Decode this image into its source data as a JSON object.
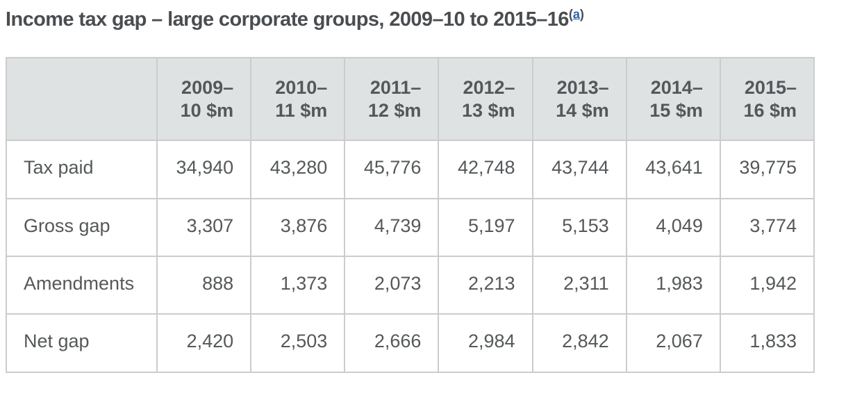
{
  "title": {
    "text": "Income tax gap – large corporate groups, 2009–10 to 2015–16",
    "footnote": {
      "prefix": "(",
      "label": "a",
      "suffix": ")"
    }
  },
  "table": {
    "corner_label": "",
    "columns": [
      {
        "line1": "2009–",
        "line2": "10 $m"
      },
      {
        "line1": "2010–",
        "line2": "11 $m"
      },
      {
        "line1": "2011–",
        "line2": "12 $m"
      },
      {
        "line1": "2012–",
        "line2": "13 $m"
      },
      {
        "line1": "2013–",
        "line2": "14 $m"
      },
      {
        "line1": "2014–",
        "line2": "15 $m"
      },
      {
        "line1": "2015–",
        "line2": "16 $m"
      }
    ],
    "rows": [
      {
        "label": "Tax paid",
        "values": [
          "34,940",
          "43,280",
          "45,776",
          "42,748",
          "43,744",
          "43,641",
          "39,775"
        ]
      },
      {
        "label": "Gross gap",
        "values": [
          "3,307",
          "3,876",
          "4,739",
          "5,197",
          "5,153",
          "4,049",
          "3,774"
        ]
      },
      {
        "label": "Amendments",
        "values": [
          "888",
          "1,373",
          "2,073",
          "2,213",
          "2,311",
          "1,983",
          "1,942"
        ]
      },
      {
        "label": "Net gap",
        "values": [
          "2,420",
          "2,503",
          "2,666",
          "2,984",
          "2,842",
          "2,067",
          "1,833"
        ]
      }
    ]
  },
  "colors": {
    "header_bg": "#dfe2e2",
    "border": "#cccccc",
    "body_text": "#55585a",
    "title_text": "#4a4d50",
    "link": "#2b5fb3"
  },
  "chart_data": {
    "type": "table",
    "title": "Income tax gap – large corporate groups, 2009–10 to 2015–16",
    "unit": "$m",
    "categories": [
      "2009–10",
      "2010–11",
      "2011–12",
      "2012–13",
      "2013–14",
      "2014–15",
      "2015–16"
    ],
    "series": [
      {
        "name": "Tax paid",
        "values": [
          34940,
          43280,
          45776,
          42748,
          43744,
          43641,
          39775
        ]
      },
      {
        "name": "Gross gap",
        "values": [
          3307,
          3876,
          4739,
          5197,
          5153,
          4049,
          3774
        ]
      },
      {
        "name": "Amendments",
        "values": [
          888,
          1373,
          2073,
          2213,
          2311,
          1983,
          1942
        ]
      },
      {
        "name": "Net gap",
        "values": [
          2420,
          2503,
          2666,
          2984,
          2842,
          2067,
          1833
        ]
      }
    ],
    "footnote_marker": "(a)"
  }
}
